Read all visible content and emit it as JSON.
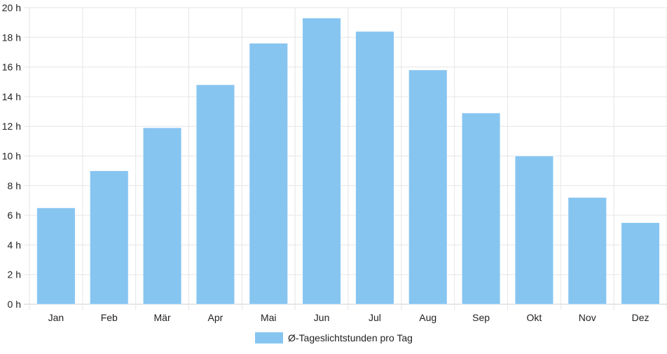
{
  "chart_data": {
    "type": "bar",
    "categories": [
      "Jan",
      "Feb",
      "Mär",
      "Apr",
      "Mai",
      "Jun",
      "Jul",
      "Aug",
      "Sep",
      "Okt",
      "Nov",
      "Dez"
    ],
    "series": [
      {
        "name": "Ø-Tageslichtstunden pro Tag",
        "values": [
          6.5,
          9.0,
          11.9,
          14.8,
          17.6,
          19.3,
          18.4,
          15.8,
          12.9,
          10.0,
          7.2,
          5.5
        ]
      }
    ],
    "yticks": [
      "0 h",
      "2 h",
      "4 h",
      "6 h",
      "8 h",
      "10 h",
      "12 h",
      "14 h",
      "16 h",
      "18 h",
      "20 h"
    ],
    "ylim": [
      0,
      20
    ],
    "grid": true,
    "legend_position": "bottom-center",
    "colors": {
      "bar": "#87c5f1",
      "grid": "#e6e6e6",
      "text": "#222222"
    }
  }
}
